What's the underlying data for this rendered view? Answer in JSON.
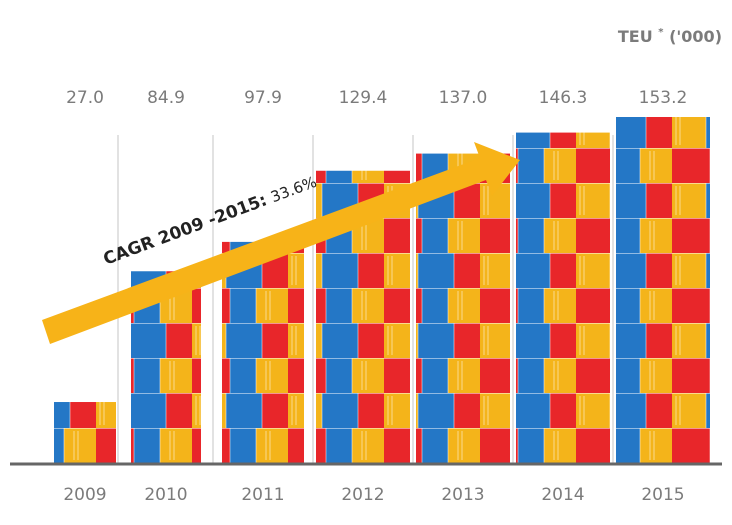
{
  "chart_data": {
    "type": "bar",
    "axis_label": {
      "unit": "TEU",
      "footnote_mark": "*",
      "scale": "('000)"
    },
    "annotation": {
      "label": "CAGR 2009 -2015:",
      "value": "33.6%"
    },
    "categories": [
      "2009",
      "2010",
      "2011",
      "2012",
      "2013",
      "2014",
      "2015"
    ],
    "values": [
      27.0,
      84.9,
      97.9,
      129.4,
      137.0,
      146.3,
      153.2
    ],
    "value_labels": [
      "27.0",
      "84.9",
      "97.9",
      "129.4",
      "137.0",
      "146.3",
      "153.2"
    ],
    "colors": [
      "#f4b41a",
      "#2477c6",
      "#e8262a"
    ]
  }
}
